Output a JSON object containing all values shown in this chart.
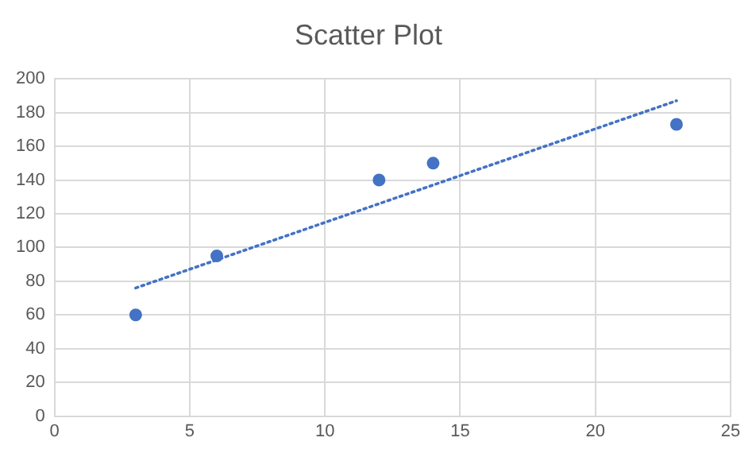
{
  "chart_data": {
    "type": "scatter",
    "title": "Scatter Plot",
    "xlim": [
      0,
      25
    ],
    "xticks": [
      0,
      5,
      10,
      15,
      20,
      25
    ],
    "ylim": [
      0,
      200
    ],
    "yticks": [
      0,
      20,
      40,
      60,
      80,
      100,
      120,
      140,
      160,
      180,
      200
    ],
    "grid": true,
    "series": [
      {
        "marker": "circle",
        "color": "#4472c4",
        "x": [
          3,
          6,
          12,
          14,
          23
        ],
        "values": [
          60,
          95,
          140,
          150,
          173
        ]
      },
      {
        "type": "line",
        "marker": "none",
        "color": "#4472c4",
        "line_style": "dotted",
        "x": [
          3,
          23
        ],
        "values": [
          76,
          187
        ]
      }
    ]
  }
}
